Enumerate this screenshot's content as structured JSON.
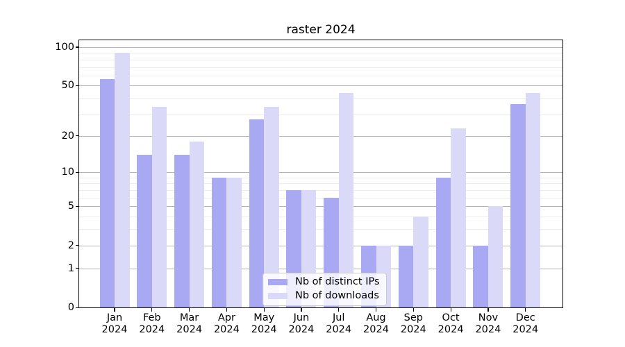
{
  "title": "raster 2024",
  "colors": {
    "ips_bar": "#a9a9f3",
    "downloads_bar": "#dadaf8",
    "grid_major": "#b4b4b4",
    "grid_minor": "#ececec",
    "spine": "#000000",
    "legend_border": "#cccccc"
  },
  "legend": {
    "items": [
      {
        "label": "Nb of distinct IPs",
        "series_key": "ips"
      },
      {
        "label": "Nb of downloads",
        "series_key": "downloads"
      }
    ]
  },
  "y_axis": {
    "scale": "log10(value+1)",
    "ticks": [
      {
        "label": "100",
        "value": 100
      },
      {
        "label": "50",
        "value": 50
      },
      {
        "label": "20",
        "value": 20
      },
      {
        "label": "10",
        "value": 10
      },
      {
        "label": "5",
        "value": 5
      },
      {
        "label": "2",
        "value": 2
      },
      {
        "label": "1",
        "value": 1
      },
      {
        "label": "0",
        "value": 0
      }
    ],
    "major_gridlines": [
      1,
      2,
      5,
      10,
      20,
      50,
      100
    ],
    "minor_gridlines": [
      3,
      4,
      6,
      7,
      8,
      9,
      30,
      40,
      60,
      70,
      80,
      90
    ]
  },
  "x_axis": {
    "categories": [
      {
        "month": "Jan",
        "year": "2024"
      },
      {
        "month": "Feb",
        "year": "2024"
      },
      {
        "month": "Mar",
        "year": "2024"
      },
      {
        "month": "Apr",
        "year": "2024"
      },
      {
        "month": "May",
        "year": "2024"
      },
      {
        "month": "Jun",
        "year": "2024"
      },
      {
        "month": "Jul",
        "year": "2024"
      },
      {
        "month": "Aug",
        "year": "2024"
      },
      {
        "month": "Sep",
        "year": "2024"
      },
      {
        "month": "Oct",
        "year": "2024"
      },
      {
        "month": "Nov",
        "year": "2024"
      },
      {
        "month": "Dec",
        "year": "2024"
      }
    ]
  },
  "chart_data": {
    "type": "bar",
    "title": "raster 2024",
    "categories": [
      "Jan 2024",
      "Feb 2024",
      "Mar 2024",
      "Apr 2024",
      "May 2024",
      "Jun 2024",
      "Jul 2024",
      "Aug 2024",
      "Sep 2024",
      "Oct 2024",
      "Nov 2024",
      "Dec 2024"
    ],
    "series": [
      {
        "name": "Nb of distinct IPs",
        "color": "#a9a9f3",
        "values": [
          56,
          14,
          14,
          9,
          27,
          7,
          6,
          2,
          2,
          9,
          2,
          36
        ]
      },
      {
        "name": "Nb of downloads",
        "color": "#dadaf8",
        "values": [
          90,
          34,
          18,
          9,
          34,
          7,
          44,
          2,
          4,
          23,
          5,
          44
        ]
      }
    ],
    "xlabel": "",
    "ylabel": "",
    "yscale": "log1p",
    "ylim": [
      0,
      113
    ],
    "yticks": [
      0,
      1,
      2,
      5,
      10,
      20,
      50,
      100
    ],
    "grid": "horizontal, major+minor",
    "legend_position": "lower center"
  }
}
